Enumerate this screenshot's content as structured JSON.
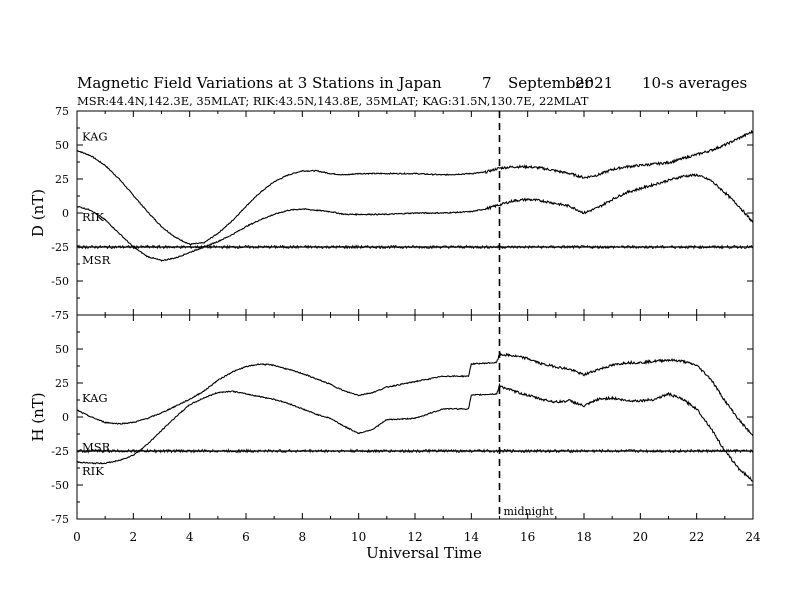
{
  "header": {
    "title": "Magnetic Field Variations at 3 Stations in Japan",
    "day": "7",
    "month": "September",
    "year": "2021",
    "averaging": "10-s averages",
    "stations_line": "MSR:44.4N,142.3E, 35MLAT;  RIK:43.5N,143.8E, 35MLAT;  KAG:31.5N,130.7E, 22MLAT"
  },
  "colors": {
    "ink": "#000000",
    "background": "#ffffff"
  },
  "chart_data": [
    {
      "type": "line",
      "ylabel": "D (nT)",
      "xlabel": "",
      "xlim": [
        0,
        24
      ],
      "ylim": [
        -75,
        75
      ],
      "yticks": [
        75,
        50,
        25,
        0,
        -25,
        -50,
        -75
      ],
      "grid": false,
      "marker_line": {
        "x": 15,
        "style": "dashed"
      },
      "series": [
        {
          "name": "KAG",
          "x": [
            0,
            0.5,
            1,
            1.5,
            2,
            2.5,
            3,
            3.5,
            4,
            4.5,
            5,
            5.5,
            6,
            6.5,
            7,
            7.5,
            8,
            8.5,
            9,
            9.5,
            10,
            11,
            12,
            13,
            14,
            14.5,
            15,
            15.5,
            16,
            16.5,
            17,
            17.5,
            18,
            18.5,
            19,
            19.5,
            20,
            20.5,
            21,
            21.5,
            22,
            22.5,
            23,
            23.5,
            24
          ],
          "y": [
            46,
            42,
            35,
            25,
            13,
            1,
            -10,
            -18,
            -23,
            -22,
            -15,
            -6,
            5,
            15,
            23,
            28,
            31,
            31,
            29,
            28,
            29,
            29,
            29,
            28,
            29,
            30,
            33,
            34,
            34,
            33,
            31,
            29,
            26,
            28,
            32,
            34,
            35,
            36,
            37,
            40,
            43,
            46,
            50,
            55,
            60
          ]
        },
        {
          "name": "RIK",
          "x": [
            0,
            0.5,
            1,
            1.5,
            2,
            2.5,
            3,
            3.5,
            4,
            4.5,
            5,
            5.5,
            6,
            6.5,
            7,
            7.5,
            8,
            8.5,
            9,
            9.5,
            10,
            11,
            12,
            13,
            14,
            14.5,
            15,
            15.5,
            16,
            16.5,
            17,
            17.5,
            18,
            18.5,
            19,
            19.5,
            20,
            20.5,
            21,
            21.5,
            22,
            22.5,
            23,
            23.5,
            24
          ],
          "y": [
            5,
            2,
            -5,
            -15,
            -25,
            -32,
            -35,
            -33,
            -29,
            -25,
            -21,
            -16,
            -10,
            -5,
            -1,
            2,
            3,
            2,
            1,
            -1,
            -1,
            -1,
            0,
            0,
            1,
            3,
            6,
            9,
            10,
            9,
            7,
            5,
            0,
            4,
            10,
            15,
            18,
            21,
            24,
            27,
            28,
            24,
            15,
            5,
            -7
          ]
        },
        {
          "name": "MSR",
          "x": [
            0,
            2,
            4,
            6,
            8,
            10,
            12,
            14,
            16,
            18,
            20,
            22,
            24
          ],
          "y": [
            -25,
            -25,
            -25,
            -25,
            -25,
            -25,
            -25,
            -25,
            -25,
            -25,
            -25,
            -25,
            -25
          ]
        }
      ],
      "hline": -25
    },
    {
      "type": "line",
      "ylabel": "H (nT)",
      "xlabel": "Universal Time",
      "xlim": [
        0,
        24
      ],
      "ylim": [
        -75,
        75
      ],
      "yticks": [
        50,
        25,
        0,
        -25,
        -50,
        -75
      ],
      "xticks": [
        0,
        2,
        4,
        6,
        8,
        10,
        12,
        14,
        16,
        18,
        20,
        22,
        24
      ],
      "grid": false,
      "marker_line": {
        "x": 15,
        "style": "dashed",
        "label": "midnight"
      },
      "series": [
        {
          "name": "KAG",
          "x": [
            0,
            0.5,
            1,
            1.5,
            2,
            2.5,
            3,
            3.5,
            4,
            4.5,
            5,
            5.5,
            6,
            6.5,
            7,
            7.5,
            8,
            8.5,
            9,
            9.5,
            10,
            10.5,
            11,
            12,
            13,
            13.9,
            14,
            14.9,
            15,
            15.5,
            16,
            16.5,
            17,
            17.5,
            18,
            18.5,
            19,
            19.5,
            20,
            20.5,
            21,
            21.5,
            22,
            22.5,
            23,
            23.5,
            24
          ],
          "y": [
            5,
            0,
            -4,
            -5,
            -4,
            -1,
            3,
            8,
            13,
            19,
            27,
            33,
            37,
            39,
            38,
            35,
            32,
            28,
            24,
            19,
            16,
            18,
            22,
            26,
            30,
            30,
            39,
            40,
            46,
            45,
            43,
            39,
            37,
            35,
            31,
            35,
            38,
            40,
            40,
            41,
            42,
            41,
            38,
            28,
            12,
            -2,
            -14
          ]
        },
        {
          "name": "RIK",
          "x": [
            0,
            0.5,
            1,
            1.5,
            2,
            2.5,
            3,
            3.5,
            4,
            4.5,
            5,
            5.5,
            6,
            6.5,
            7,
            7.5,
            8,
            8.5,
            9,
            9.5,
            10,
            10.5,
            11,
            12,
            13,
            13.9,
            14,
            14.9,
            15,
            15.5,
            16,
            16.5,
            17,
            17.5,
            18,
            18.5,
            19,
            19.5,
            20,
            20.5,
            21,
            21.5,
            22,
            22.5,
            23,
            23.5,
            24
          ],
          "y": [
            -33,
            -34,
            -34,
            -32,
            -28,
            -20,
            -10,
            0,
            9,
            14,
            18,
            19,
            17,
            15,
            13,
            10,
            6,
            2,
            -1,
            -7,
            -12,
            -9,
            -2,
            -1,
            6,
            6,
            16,
            17,
            23,
            19,
            16,
            13,
            11,
            12,
            8,
            13,
            14,
            12,
            12,
            13,
            17,
            13,
            6,
            -8,
            -25,
            -38,
            -47
          ]
        },
        {
          "name": "MSR",
          "x": [
            0,
            2,
            4,
            6,
            8,
            10,
            12,
            14,
            16,
            18,
            20,
            22,
            24
          ],
          "y": [
            -25,
            -25,
            -25,
            -25,
            -25,
            -25,
            -25,
            -25,
            -25,
            -25,
            -25,
            -25,
            -25
          ]
        }
      ],
      "hline": -25
    }
  ]
}
